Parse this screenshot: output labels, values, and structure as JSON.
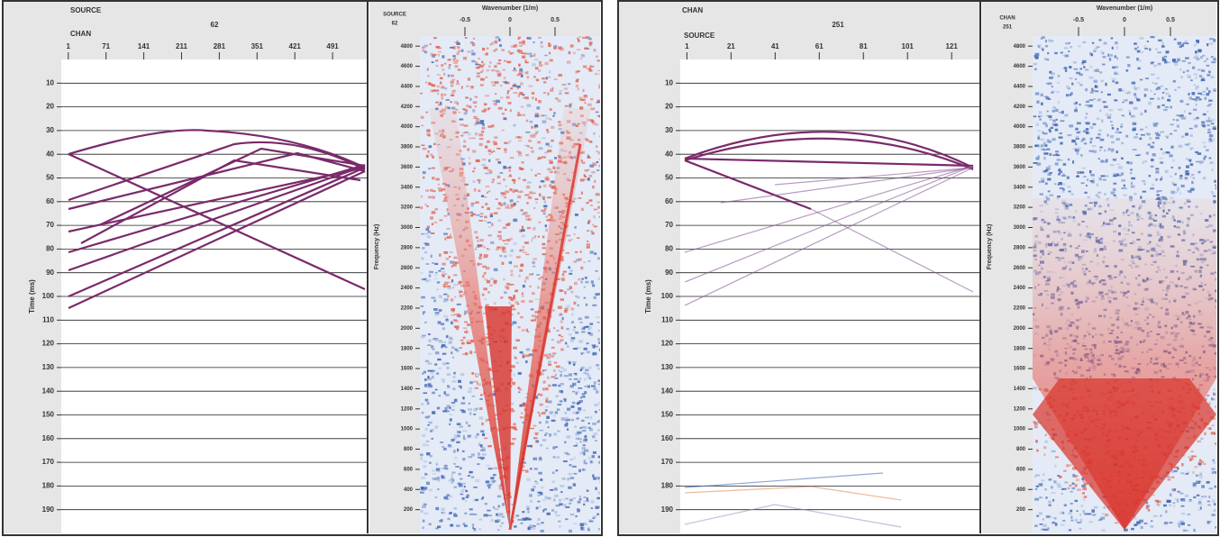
{
  "chart_data": [
    {
      "type": "gather",
      "header_top": "SOURCE",
      "header_value": "62",
      "header_bottom": "CHAN",
      "xticks": [
        1,
        71,
        141,
        211,
        281,
        351,
        421,
        491
      ],
      "xlim": [
        -12,
        556
      ],
      "ylabel": "Time (ms)",
      "yticks": [
        10,
        20,
        30,
        40,
        50,
        60,
        70,
        80,
        90,
        100,
        110,
        120,
        130,
        140,
        150,
        160,
        170,
        180,
        190
      ],
      "ylim": [
        0,
        200
      ],
      "grid": true
    },
    {
      "type": "fk",
      "header_top": "SOURCE",
      "header_value": "62",
      "xlabel": "Wavenumber (1/m)",
      "xticks": [
        -0.5,
        0,
        0.5
      ],
      "xlim": [
        -1,
        1
      ],
      "ylabel": "Frequency (Hz)",
      "yticks": [
        200,
        400,
        600,
        800,
        1000,
        1200,
        1400,
        1600,
        1800,
        2000,
        2200,
        2400,
        2600,
        2800,
        3000,
        3200,
        3400,
        3600,
        3800,
        4000,
        4200,
        4400,
        4600,
        4800
      ],
      "ylim": [
        0,
        4900
      ]
    },
    {
      "type": "gather",
      "header_top": "CHAN",
      "header_value": "251",
      "header_bottom": "SOURCE",
      "xticks": [
        1,
        21,
        41,
        61,
        81,
        101,
        121
      ],
      "xlim": [
        -2,
        134
      ],
      "ylabel": "Time (ms)",
      "yticks": [
        10,
        20,
        30,
        40,
        50,
        60,
        70,
        80,
        90,
        100,
        110,
        120,
        130,
        140,
        150,
        160,
        170,
        180,
        190
      ],
      "ylim": [
        0,
        200
      ],
      "grid": true
    },
    {
      "type": "fk",
      "header_top": "CHAN",
      "header_value": "251",
      "xlabel": "Wavenumber (1/m)",
      "xticks": [
        -0.5,
        0,
        0.5
      ],
      "xlim": [
        -1,
        1
      ],
      "ylabel": "Frequency (Hz)",
      "yticks": [
        200,
        400,
        600,
        800,
        1000,
        1200,
        1400,
        1600,
        1800,
        2000,
        2200,
        2400,
        2600,
        2800,
        3000,
        3200,
        3400,
        3600,
        3800,
        4000,
        4200,
        4400,
        4600,
        4800
      ],
      "ylim": [
        0,
        4900
      ]
    }
  ]
}
